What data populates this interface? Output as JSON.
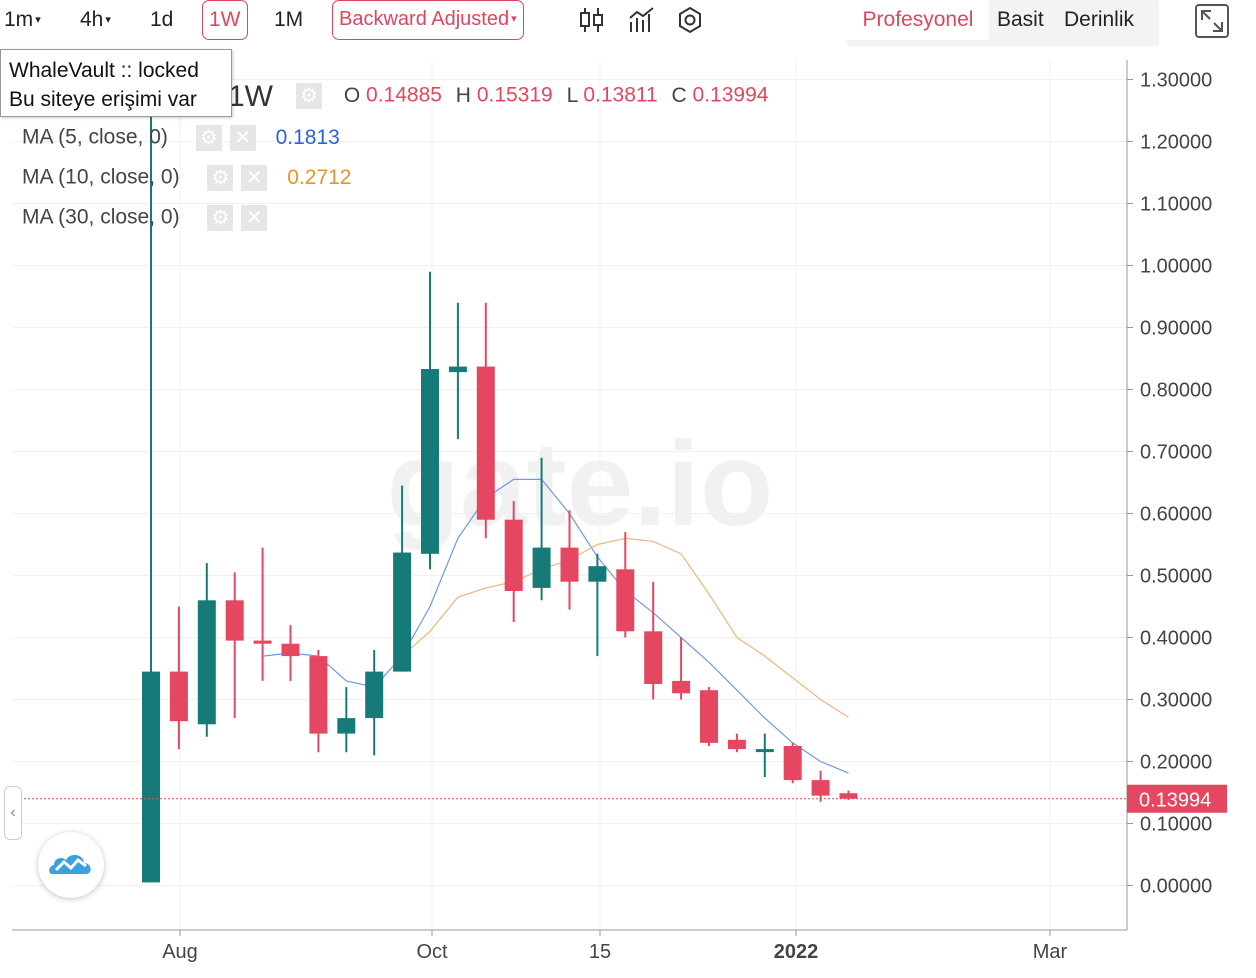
{
  "toolbar": {
    "intervals": [
      {
        "label": "1m",
        "caret": "▾"
      },
      {
        "label": "4h",
        "caret": "▾"
      },
      {
        "label": "1d",
        "caret": ""
      },
      {
        "label": "1W",
        "caret": "",
        "active": true
      },
      {
        "label": "1M",
        "caret": ""
      }
    ],
    "adjust_label": "Backward Adjusted",
    "adjust_caret": "▾",
    "icons": [
      "candles-icon",
      "indicators-icon",
      "settings-icon"
    ],
    "modes": {
      "pro": "Profesyonel",
      "basic": "Basit",
      "depth": "Derinlik"
    },
    "fullscreen_icon": "fullscreen-icon"
  },
  "tooltip": {
    "line1": "WhaleVault :: locked",
    "line2": "Bu siteye erişimi var"
  },
  "ohlc": {
    "interval": "1W",
    "o_label": "O",
    "o": "0.14885",
    "h_label": "H",
    "h": "0.15319",
    "l_label": "L",
    "l": "0.13811",
    "c_label": "C",
    "c": "0.13994"
  },
  "indicators": [
    {
      "label": "MA (5, close, 0)",
      "value": "0.1813",
      "color": "#2a62d9"
    },
    {
      "label": "MA (10, close, 0)",
      "value": "0.2712",
      "color": "#e8922a"
    },
    {
      "label": "MA (30, close, 0)",
      "value": "",
      "color": "#888888"
    }
  ],
  "watermark": "gate.io",
  "colors": {
    "up": "#167b78",
    "down": "#e4475f",
    "accent": "#e0455f",
    "ma5": "#6d9ae8",
    "ma10": "#f0b57a"
  },
  "chart_data": {
    "type": "candlestick",
    "y_axis": {
      "range": [
        -0.07,
        1.35
      ],
      "ticks": [
        "1.30000",
        "1.20000",
        "1.10000",
        "1.00000",
        "0.90000",
        "0.80000",
        "0.70000",
        "0.60000",
        "0.50000",
        "0.40000",
        "0.30000",
        "0.20000",
        "0.10000",
        "0.00000"
      ]
    },
    "x_axis": {
      "labels": [
        "Aug",
        "Oct",
        "15",
        "2022",
        "Mar"
      ]
    },
    "last_price": "0.13994",
    "candles": [
      {
        "o": 0.005,
        "h": 1.45,
        "l": 0.005,
        "c": 0.345
      },
      {
        "o": 0.345,
        "h": 0.45,
        "l": 0.22,
        "c": 0.265
      },
      {
        "o": 0.26,
        "h": 0.52,
        "l": 0.24,
        "c": 0.46
      },
      {
        "o": 0.46,
        "h": 0.505,
        "l": 0.27,
        "c": 0.395
      },
      {
        "o": 0.395,
        "h": 0.545,
        "l": 0.33,
        "c": 0.39
      },
      {
        "o": 0.39,
        "h": 0.42,
        "l": 0.33,
        "c": 0.37
      },
      {
        "o": 0.37,
        "h": 0.38,
        "l": 0.215,
        "c": 0.245
      },
      {
        "o": 0.245,
        "h": 0.32,
        "l": 0.215,
        "c": 0.27
      },
      {
        "o": 0.27,
        "h": 0.38,
        "l": 0.21,
        "c": 0.345
      },
      {
        "o": 0.345,
        "h": 0.645,
        "l": 0.345,
        "c": 0.537
      },
      {
        "o": 0.535,
        "h": 0.99,
        "l": 0.51,
        "c": 0.833
      },
      {
        "o": 0.828,
        "h": 0.94,
        "l": 0.72,
        "c": 0.837
      },
      {
        "o": 0.837,
        "h": 0.94,
        "l": 0.56,
        "c": 0.59
      },
      {
        "o": 0.59,
        "h": 0.62,
        "l": 0.425,
        "c": 0.475
      },
      {
        "o": 0.48,
        "h": 0.69,
        "l": 0.46,
        "c": 0.545
      },
      {
        "o": 0.545,
        "h": 0.605,
        "l": 0.445,
        "c": 0.49
      },
      {
        "o": 0.49,
        "h": 0.535,
        "l": 0.37,
        "c": 0.515
      },
      {
        "o": 0.51,
        "h": 0.57,
        "l": 0.4,
        "c": 0.41
      },
      {
        "o": 0.41,
        "h": 0.49,
        "l": 0.3,
        "c": 0.325
      },
      {
        "o": 0.33,
        "h": 0.4,
        "l": 0.3,
        "c": 0.31
      },
      {
        "o": 0.315,
        "h": 0.32,
        "l": 0.225,
        "c": 0.23
      },
      {
        "o": 0.235,
        "h": 0.245,
        "l": 0.215,
        "c": 0.22
      },
      {
        "o": 0.22,
        "h": 0.245,
        "l": 0.175,
        "c": 0.22
      },
      {
        "o": 0.225,
        "h": 0.23,
        "l": 0.165,
        "c": 0.17
      },
      {
        "o": 0.17,
        "h": 0.185,
        "l": 0.135,
        "c": 0.145
      },
      {
        "o": 0.14885,
        "h": 0.15319,
        "l": 0.13811,
        "c": 0.13994
      }
    ],
    "ma5": [
      null,
      null,
      null,
      null,
      0.37,
      0.375,
      0.37,
      0.33,
      0.32,
      0.37,
      0.45,
      0.56,
      0.625,
      0.655,
      0.655,
      0.6,
      0.53,
      0.475,
      0.44,
      0.4,
      0.36,
      0.315,
      0.27,
      0.23,
      0.2,
      0.1813
    ],
    "ma10": [
      null,
      null,
      null,
      null,
      null,
      null,
      null,
      null,
      null,
      0.37,
      0.41,
      0.465,
      0.48,
      0.49,
      0.51,
      0.525,
      0.55,
      0.56,
      0.555,
      0.535,
      0.47,
      0.4,
      0.37,
      0.335,
      0.3,
      0.2712
    ]
  }
}
